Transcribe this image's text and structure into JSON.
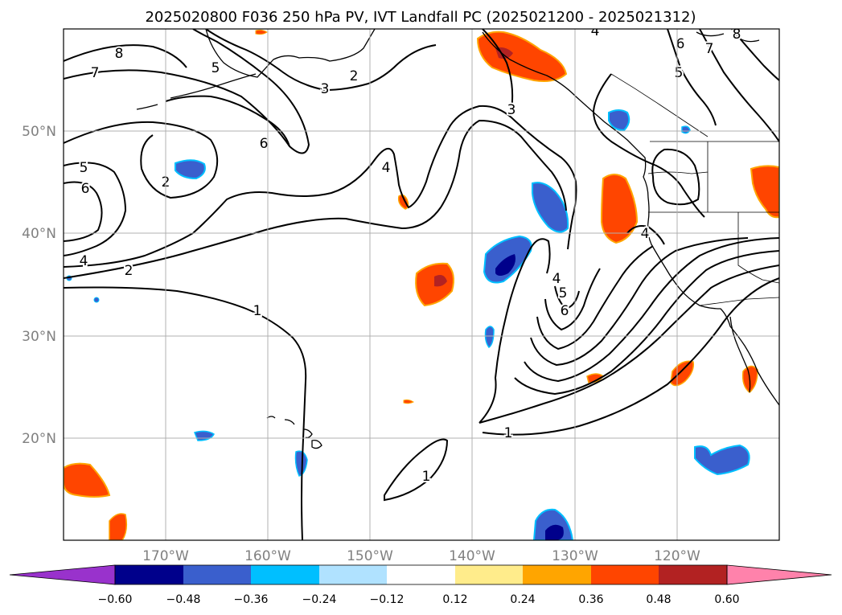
{
  "title": "2025020800 F036 250 hPa PV, IVT Landfall PC (2025021200 - 2025021312)",
  "map": {
    "projection": "PlateCarree",
    "lon_range": [
      -180,
      -110
    ],
    "lat_range": [
      10,
      60
    ],
    "lat_ticks": [
      {
        "value": 50,
        "label": "50°N"
      },
      {
        "value": 40,
        "label": "40°N"
      },
      {
        "value": 30,
        "label": "30°N"
      },
      {
        "value": 20,
        "label": "20°N"
      }
    ],
    "lon_ticks": [
      {
        "value": -170,
        "label": "170°W"
      },
      {
        "value": -160,
        "label": "160°W"
      },
      {
        "value": -150,
        "label": "150°W"
      },
      {
        "value": -140,
        "label": "140°W"
      },
      {
        "value": -130,
        "label": "130°W"
      },
      {
        "value": -120,
        "label": "120°W"
      }
    ],
    "gridlines": true,
    "contour_field": "250 hPa PV",
    "contour_labels": [
      "8",
      "7",
      "5",
      "6",
      "4",
      "2",
      "5",
      "3",
      "2",
      "6",
      "2",
      "4",
      "1",
      "3",
      "4",
      "5",
      "6",
      "1",
      "1",
      "4",
      "5",
      "6",
      "7",
      "8",
      "4"
    ],
    "shaded_field": "IVT Landfall PC"
  },
  "colorbar": {
    "ticks": [
      "−0.60",
      "−0.48",
      "−0.36",
      "−0.24",
      "−0.12",
      "0.12",
      "0.24",
      "0.36",
      "0.48",
      "0.60"
    ],
    "colors": [
      "#9932cc",
      "#00008b",
      "#3a5fcd",
      "#00bfff",
      "#b0e2ff",
      "#ffffff",
      "#ffec8b",
      "#ffa500",
      "#ff4500",
      "#b22222",
      "#ff82ab"
    ],
    "extend": "both"
  }
}
